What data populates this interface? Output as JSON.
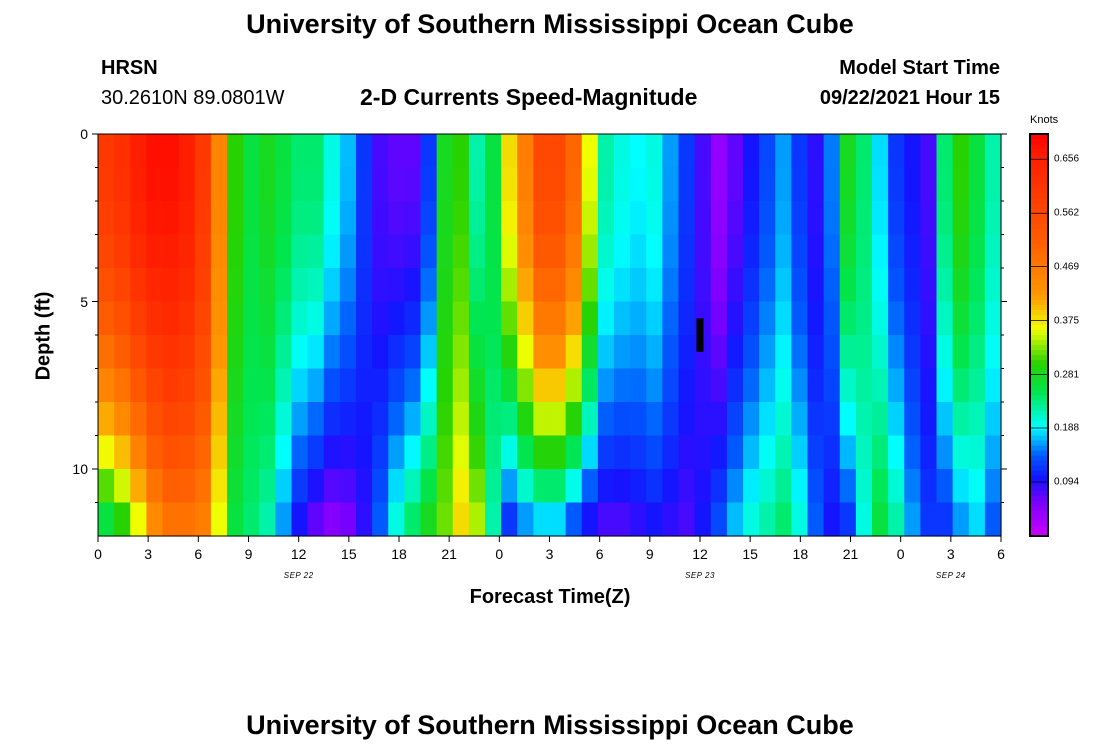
{
  "page": {
    "title_top": "University of Southern Mississippi Ocean Cube",
    "title_bottom": "University of Southern Mississippi Ocean Cube"
  },
  "header": {
    "station": "HRSN",
    "coords": "30.2610N  89.0801W",
    "subtitle": "2-D Currents Speed-Magnitude",
    "model_label": "Model Start Time",
    "model_time": "09/22/2021 Hour 15"
  },
  "chart_data": {
    "type": "heatmap",
    "title": "2-D Currents Speed-Magnitude",
    "xlabel": "Forecast Time(Z)",
    "ylabel": "Depth (ft)",
    "x_ticks": [
      "0",
      "3",
      "6",
      "9",
      "12",
      "15",
      "18",
      "21",
      "0",
      "3",
      "6",
      "9",
      "12",
      "15",
      "18",
      "21",
      "0",
      "3",
      "6"
    ],
    "x_dates": [
      {
        "label": "SEP 22",
        "hour_index": 12
      },
      {
        "label": "SEP 23",
        "hour_index": 36
      },
      {
        "label": "SEP 24",
        "hour_index": 51
      }
    ],
    "y_ticks": [
      "0",
      "5",
      "10"
    ],
    "x_range_hours": [
      0,
      54
    ],
    "y_range_ft": [
      0,
      12
    ],
    "colorbar": {
      "unit": "Knots",
      "ticks": [
        "0.656",
        "0.562",
        "0.469",
        "0.375",
        "0.281",
        "0.188",
        "0.094"
      ],
      "range": [
        0.0,
        0.7
      ]
    },
    "marker": {
      "hour": 36,
      "depth_from_ft": 5.5,
      "depth_to_ft": 6.5
    },
    "depth_layers_ft": [
      0.5,
      1.5,
      2.5,
      3.5,
      4.5,
      5.5,
      6.5,
      7.5,
      8.5,
      9.5,
      10.5,
      11.5
    ],
    "surface_speed_knots": [
      0.6,
      0.62,
      0.66,
      0.68,
      0.68,
      0.66,
      0.6,
      0.45,
      0.3,
      0.26,
      0.28,
      0.26,
      0.24,
      0.24,
      0.2,
      0.17,
      0.12,
      0.08,
      0.07,
      0.07,
      0.12,
      0.28,
      0.3,
      0.22,
      0.26,
      0.38,
      0.46,
      0.56,
      0.56,
      0.5,
      0.36,
      0.22,
      0.2,
      0.19,
      0.2,
      0.16,
      0.12,
      0.08,
      0.04,
      0.07,
      0.1,
      0.13,
      0.16,
      0.12,
      0.09,
      0.15,
      0.28,
      0.24,
      0.18,
      0.12,
      0.1,
      0.08,
      0.24,
      0.3,
      0.26,
      0.22
    ],
    "bottom_speed_knots": [
      0.26,
      0.3,
      0.36,
      0.44,
      0.48,
      0.48,
      0.46,
      0.36,
      0.26,
      0.24,
      0.22,
      0.16,
      0.1,
      0.07,
      0.05,
      0.06,
      0.09,
      0.14,
      0.2,
      0.24,
      0.28,
      0.32,
      0.38,
      0.34,
      0.22,
      0.12,
      0.16,
      0.18,
      0.18,
      0.14,
      0.1,
      0.08,
      0.08,
      0.09,
      0.1,
      0.09,
      0.08,
      0.1,
      0.13,
      0.17,
      0.2,
      0.22,
      0.24,
      0.2,
      0.14,
      0.1,
      0.12,
      0.2,
      0.26,
      0.22,
      0.16,
      0.12,
      0.12,
      0.16,
      0.18,
      0.14
    ]
  }
}
